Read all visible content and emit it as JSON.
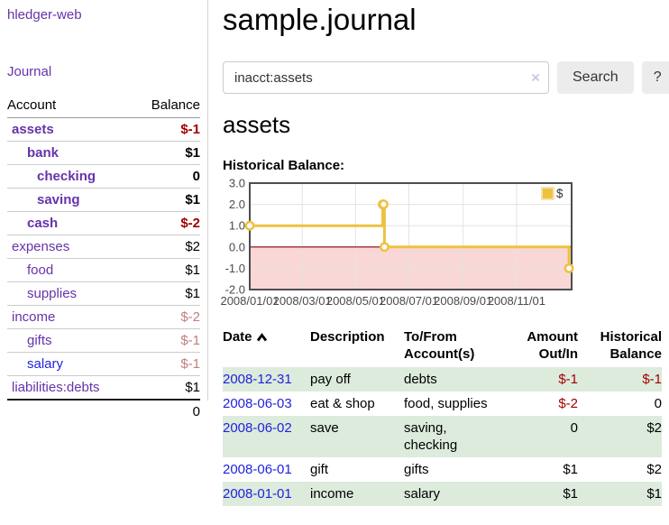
{
  "app": {
    "title": "hledger-web"
  },
  "header": {
    "title": "sample.journal"
  },
  "search": {
    "value": "inacct:assets",
    "clear_icon": "×",
    "search_button": "Search",
    "help_button": "?"
  },
  "main": {
    "account_heading": "assets",
    "chart_label": "Historical Balance:"
  },
  "sidebar": {
    "journal_link": "Journal",
    "accounts_table": {
      "headers": {
        "account": "Account",
        "balance": "Balance"
      },
      "rows": [
        {
          "name": "assets",
          "balance": "$-1",
          "depth": 1,
          "bold": true,
          "negative": "strong"
        },
        {
          "name": "bank",
          "balance": "$1",
          "depth": 2,
          "bold": true
        },
        {
          "name": "checking",
          "balance": "0",
          "depth": 3,
          "bold": true
        },
        {
          "name": "saving",
          "balance": "$1",
          "depth": 3,
          "bold": true
        },
        {
          "name": "cash",
          "balance": "$-2",
          "depth": 2,
          "bold": true,
          "negative": "strong"
        },
        {
          "name": "expenses",
          "balance": "$2",
          "depth": 1
        },
        {
          "name": "food",
          "balance": "$1",
          "depth": 2
        },
        {
          "name": "supplies",
          "balance": "$1",
          "depth": 2
        },
        {
          "name": "income",
          "balance": "$-2",
          "depth": 1,
          "negative": "soft"
        },
        {
          "name": "gifts",
          "balance": "$-1",
          "depth": 2,
          "negative": "soft"
        },
        {
          "name": "salary",
          "balance": "$-1",
          "depth": 2,
          "negative": "soft",
          "link_color": "blue"
        },
        {
          "name": "liabilities:debts",
          "balance": "$1",
          "depth": 1
        }
      ],
      "total": "0"
    }
  },
  "chart_data": {
    "type": "line",
    "title": "Historical Balance:",
    "step": true,
    "series": [
      {
        "name": "$",
        "color": "#EDC240",
        "points": [
          {
            "date": "2008-01-01",
            "value": 1
          },
          {
            "date": "2008-06-01",
            "value": 2
          },
          {
            "date": "2008-06-02",
            "value": 2
          },
          {
            "date": "2008-06-03",
            "value": 0
          },
          {
            "date": "2008-12-31",
            "value": -1
          }
        ]
      }
    ],
    "x_range": [
      "2008-01-01",
      "2009-01-03"
    ],
    "ylim": [
      -2,
      3
    ],
    "y_ticks": [
      3,
      2,
      1,
      0,
      -1,
      -2
    ],
    "x_ticks": [
      "2008/01/01",
      "2008/03/01",
      "2008/05/01",
      "2008/07/01",
      "2008/09/01",
      "2008/11/01"
    ],
    "grid": true,
    "legend_position": "top-right",
    "legend_label": "$",
    "zero_line_color": "#8b0000",
    "negative_region_color": "#fad7d7"
  },
  "register_table": {
    "headers": {
      "date": "Date",
      "description": "Description",
      "accounts": "To/From Account(s)",
      "amount": "Amount Out/In",
      "balance": "Historical Balance"
    },
    "sort": {
      "column": "date",
      "direction": "ascending",
      "icon": "caret-up"
    },
    "rows": [
      {
        "date": "2008-12-31",
        "description": "pay off",
        "accounts": "debts",
        "amount": "$-1",
        "balance": "$-1",
        "amount_negative": true,
        "balance_negative": true
      },
      {
        "date": "2008-06-03",
        "description": "eat & shop",
        "accounts": "food, supplies",
        "amount": "$-2",
        "balance": "0",
        "amount_negative": true,
        "balance_negative": false
      },
      {
        "date": "2008-06-02",
        "description": "save",
        "accounts": "saving, checking",
        "amount": "0",
        "balance": "$2",
        "amount_negative": false,
        "balance_negative": false
      },
      {
        "date": "2008-06-01",
        "description": "gift",
        "accounts": "gifts",
        "amount": "$1",
        "balance": "$2",
        "amount_negative": false,
        "balance_negative": false
      },
      {
        "date": "2008-01-01",
        "description": "income",
        "accounts": "salary",
        "amount": "$1",
        "balance": "$1",
        "amount_negative": false,
        "balance_negative": false
      }
    ]
  },
  "colors": {
    "link_purple": "#6633aa",
    "link_blue": "#2222dd",
    "negative_strong": "#a40000",
    "negative_soft": "#c08080",
    "row_stripe_green": "#dcebdc",
    "chart_line": "#EDC240"
  }
}
